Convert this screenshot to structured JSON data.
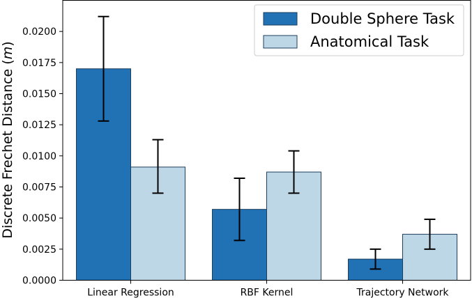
{
  "chart_data": {
    "type": "bar",
    "categories": [
      "Linear Regression",
      "RBF Kernel",
      "Trajectory Network"
    ],
    "series": [
      {
        "name": "Double Sphere Task",
        "color": "#2171b5",
        "values": [
          0.017,
          0.0057,
          0.0017
        ],
        "err_low": [
          0.0128,
          0.0032,
          0.0009
        ],
        "err_high": [
          0.0212,
          0.0082,
          0.0025
        ]
      },
      {
        "name": "Anatomical Task",
        "color": "#bdd7e7",
        "values": [
          0.0091,
          0.0087,
          0.0037
        ],
        "err_low": [
          0.007,
          0.007,
          0.0025
        ],
        "err_high": [
          0.0113,
          0.0104,
          0.0049
        ]
      }
    ],
    "ylabel_text": "Discrete Frechet Distance (",
    "ylabel_unit": "m",
    "ylabel_close": ")",
    "ylim": [
      0,
      0.0225
    ],
    "yticks": [
      "0.0000",
      "0.0025",
      "0.0050",
      "0.0075",
      "0.0100",
      "0.0125",
      "0.0150",
      "0.0175",
      "0.0200"
    ],
    "ytick_values": [
      0,
      0.0025,
      0.005,
      0.0075,
      0.01,
      0.0125,
      0.015,
      0.0175,
      0.02
    ],
    "legend_position": "upper-right",
    "grid": false,
    "bar_edge_color": "#1d3f5c"
  }
}
